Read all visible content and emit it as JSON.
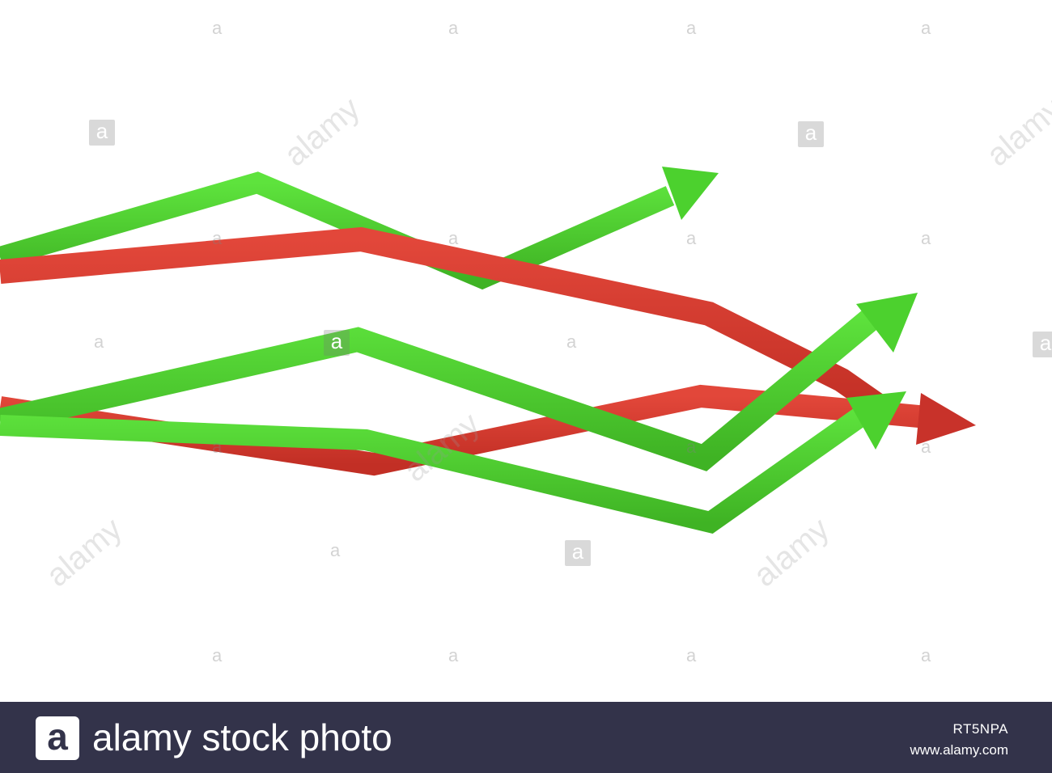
{
  "image": {
    "subject": "green-and-red-zigzag-arrows",
    "colors": {
      "green": "#4cd12e",
      "red": "#d9382c",
      "footer_bg": "#33334a"
    }
  },
  "watermark": {
    "tile_letter": "a",
    "word": "alamy"
  },
  "footer": {
    "logo_letter": "a",
    "brand": "alamy stock photo",
    "image_id": "RT5NPA",
    "url": "www.alamy.com"
  }
}
